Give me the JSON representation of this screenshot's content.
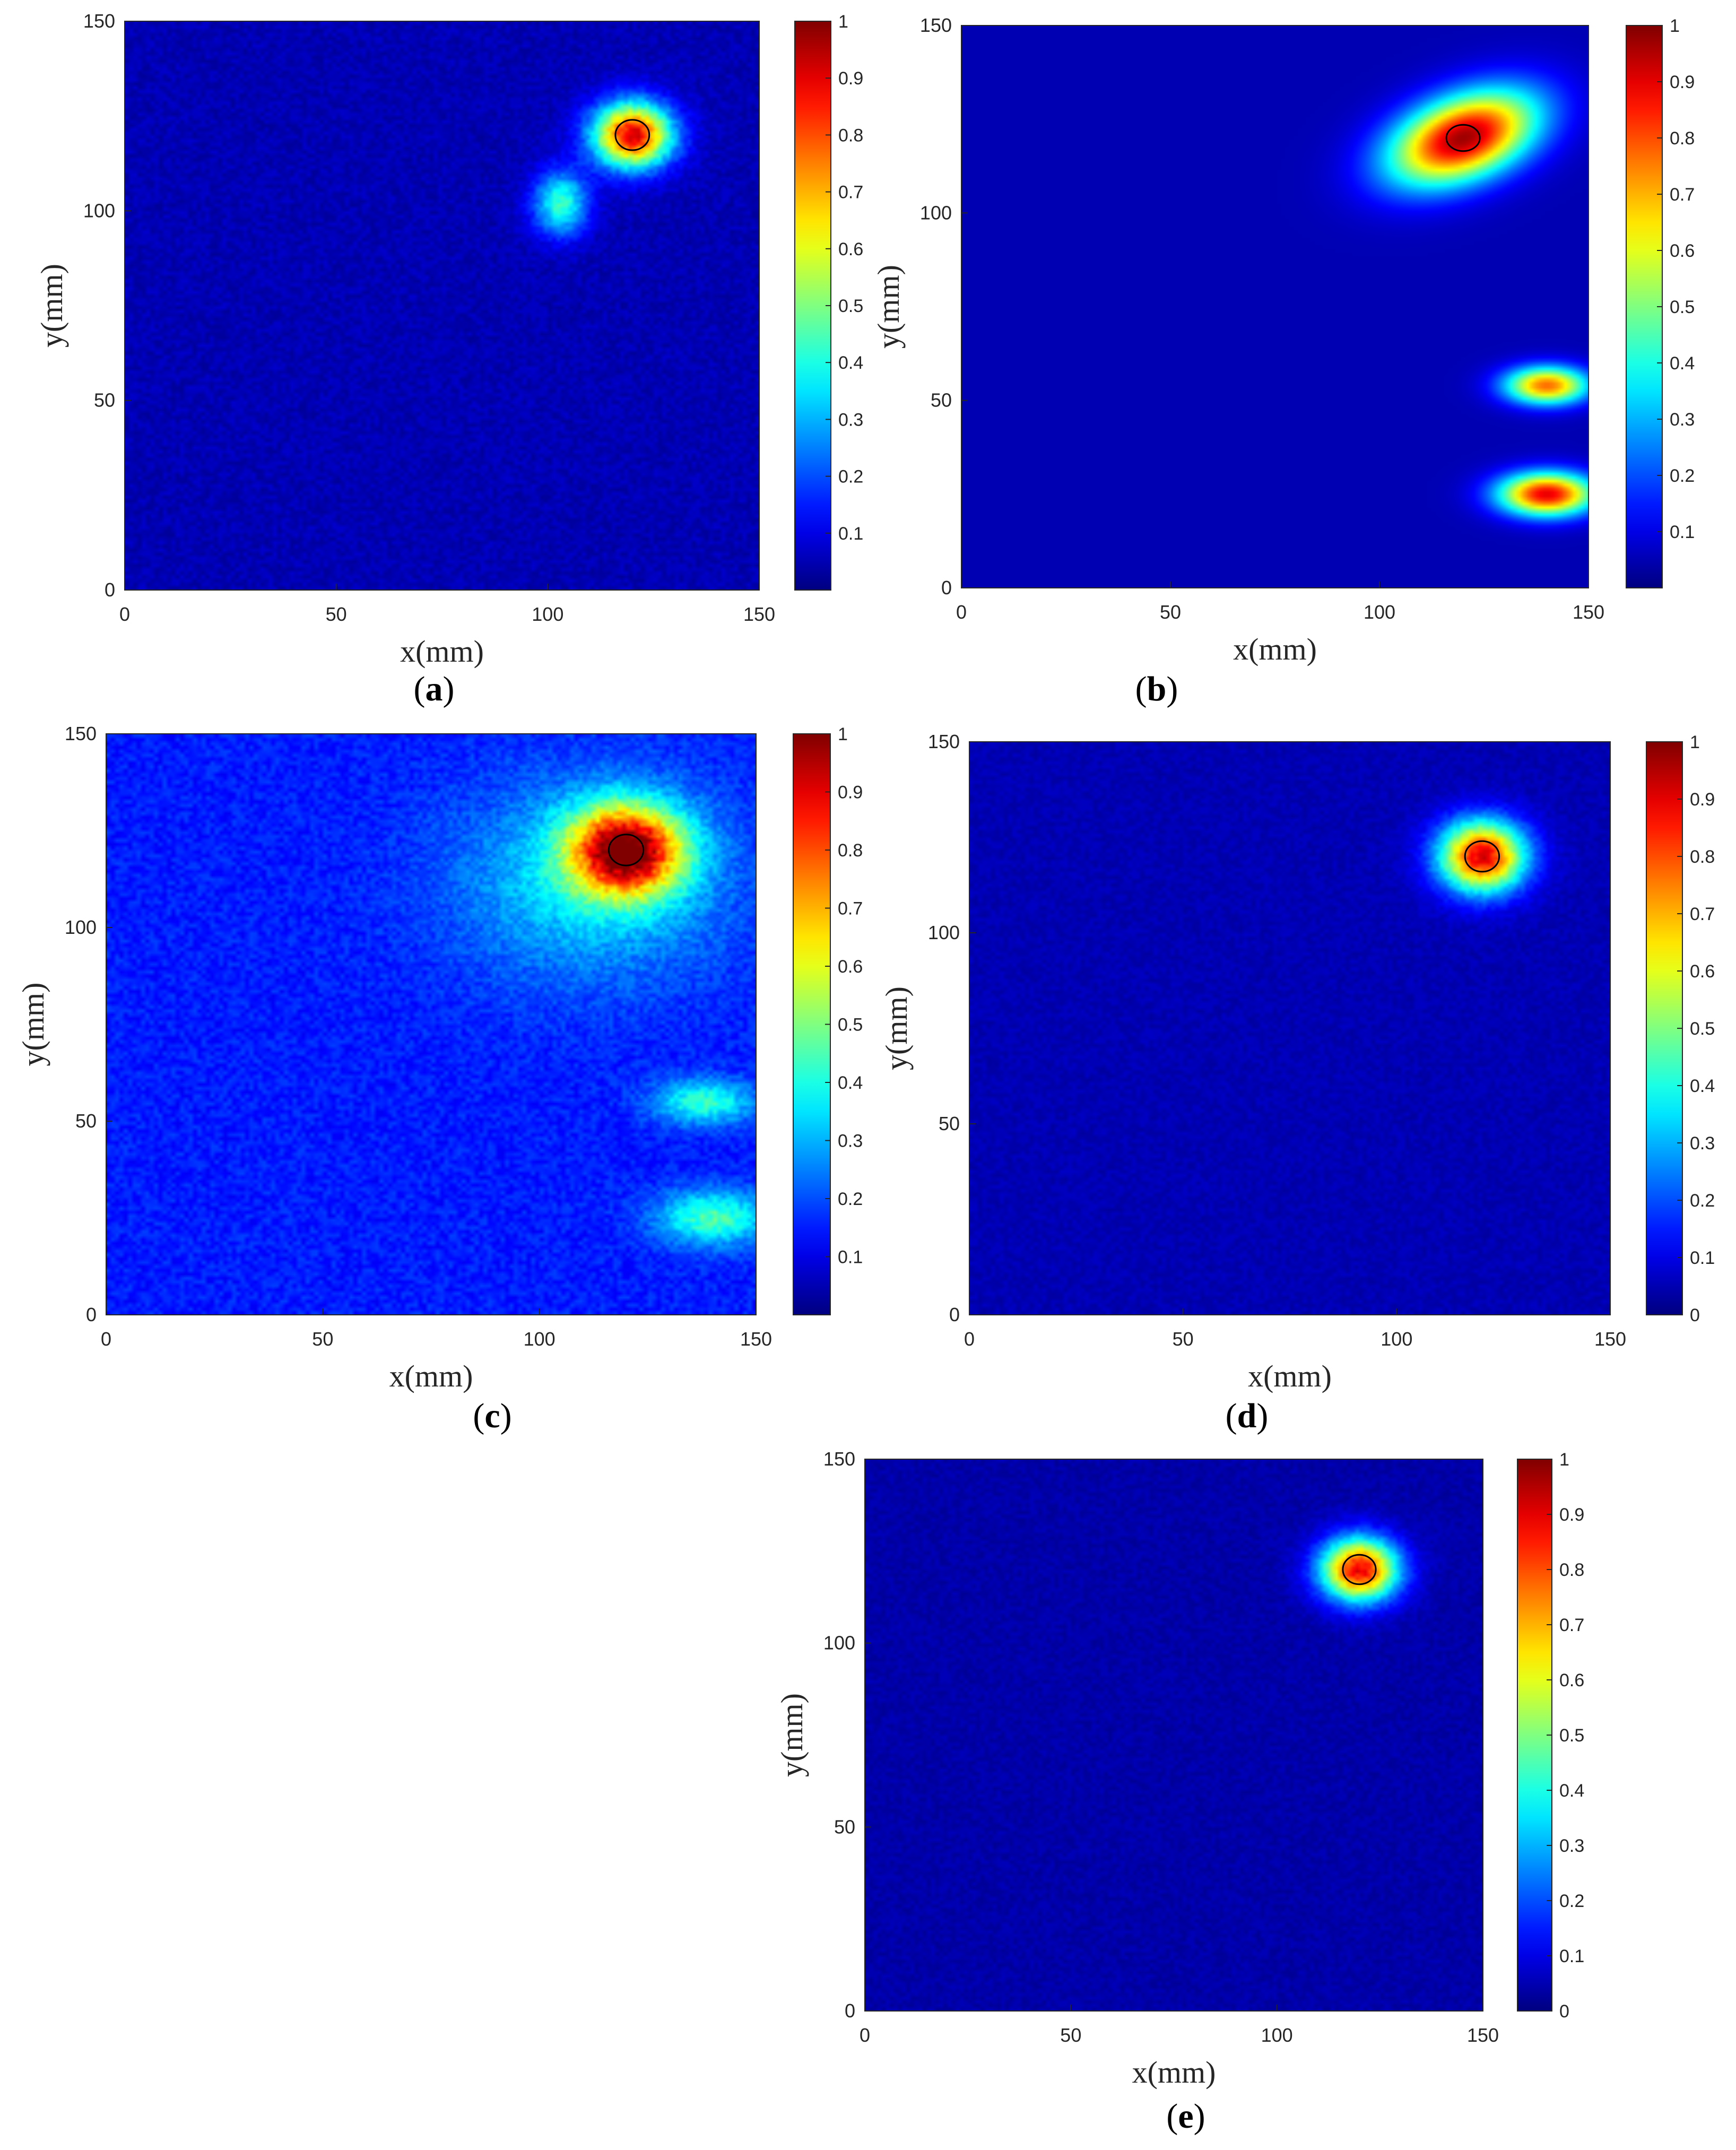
{
  "chart_data": [
    {
      "type": "heatmap",
      "panel_label": "a",
      "xlabel": "x(mm)",
      "ylabel": "y(mm)",
      "xlim": [
        0,
        150
      ],
      "ylim": [
        0,
        150
      ],
      "x_ticks": [
        "0",
        "50",
        "100",
        "150"
      ],
      "y_ticks": [
        "0",
        "50",
        "100",
        "150"
      ],
      "colorbar": {
        "min": 0,
        "max": 1,
        "ticks": [
          "0.1",
          "0.2",
          "0.3",
          "0.4",
          "0.5",
          "0.6",
          "0.7",
          "0.8",
          "0.9",
          "1"
        ]
      },
      "colormap": "jet",
      "background_value": 0.05,
      "noise": 0.04,
      "target_marker": {
        "x": 120,
        "y": 120,
        "rx": 4,
        "ry": 4
      },
      "hotspots": [
        {
          "x": 120,
          "y": 120,
          "sx": 6.5,
          "sy": 6,
          "value": 0.85
        },
        {
          "x": 103,
          "y": 102,
          "sx": 4.5,
          "sy": 6,
          "value": 0.38
        }
      ]
    },
    {
      "type": "heatmap",
      "panel_label": "b",
      "xlabel": "x(mm)",
      "ylabel": "y(mm)",
      "xlim": [
        0,
        150
      ],
      "ylim": [
        0,
        150
      ],
      "x_ticks": [
        "0",
        "50",
        "100",
        "150"
      ],
      "y_ticks": [
        "0",
        "50",
        "100",
        "150"
      ],
      "colorbar": {
        "min": 0,
        "max": 1,
        "ticks": [
          "0.1",
          "0.2",
          "0.3",
          "0.4",
          "0.5",
          "0.6",
          "0.7",
          "0.8",
          "0.9",
          "1"
        ]
      },
      "colormap": "jet",
      "background_value": 0.05,
      "noise": 0.0,
      "target_marker": {
        "x": 120,
        "y": 120,
        "rx": 4,
        "ry": 3.5
      },
      "hotspots": [
        {
          "x": 120,
          "y": 120,
          "sx": 13,
          "sy": 7.5,
          "value": 0.92,
          "rotation": -25
        },
        {
          "x": 140,
          "y": 54,
          "sx": 7,
          "sy": 3.5,
          "value": 0.72
        },
        {
          "x": 140,
          "y": 25,
          "sx": 8,
          "sy": 4,
          "value": 0.85
        }
      ]
    },
    {
      "type": "heatmap",
      "panel_label": "c",
      "xlabel": "x(mm)",
      "ylabel": "y(mm)",
      "xlim": [
        0,
        150
      ],
      "ylim": [
        0,
        150
      ],
      "x_ticks": [
        "0",
        "50",
        "100",
        "150"
      ],
      "y_ticks": [
        "0",
        "50",
        "100",
        "150"
      ],
      "colorbar": {
        "min": 0,
        "max": 1,
        "ticks": [
          "0.1",
          "0.2",
          "0.3",
          "0.4",
          "0.5",
          "0.6",
          "0.7",
          "0.8",
          "0.9",
          "1"
        ]
      },
      "colormap": "jet",
      "background_value": 0.15,
      "noise": 0.05,
      "target_marker": {
        "x": 120,
        "y": 120,
        "rx": 4,
        "ry": 4
      },
      "hotspots": [
        {
          "x": 120,
          "y": 120,
          "sx": 9,
          "sy": 8,
          "value": 0.8
        },
        {
          "x": 112,
          "y": 112,
          "sx": 22,
          "sy": 18,
          "value": 0.2
        },
        {
          "x": 138,
          "y": 55,
          "sx": 8,
          "sy": 4,
          "value": 0.28
        },
        {
          "x": 140,
          "y": 25,
          "sx": 9,
          "sy": 5,
          "value": 0.3
        }
      ]
    },
    {
      "type": "heatmap",
      "panel_label": "d",
      "xlabel": "x(mm)",
      "ylabel": "y(mm)",
      "xlim": [
        0,
        150
      ],
      "ylim": [
        0,
        150
      ],
      "x_ticks": [
        "0",
        "50",
        "100",
        "150"
      ],
      "y_ticks": [
        "0",
        "50",
        "100",
        "150"
      ],
      "colorbar": {
        "min": 0,
        "max": 1,
        "ticks": [
          "0",
          "0.1",
          "0.2",
          "0.3",
          "0.4",
          "0.5",
          "0.6",
          "0.7",
          "0.8",
          "0.9",
          "1"
        ]
      },
      "colormap": "jet",
      "background_value": 0.05,
      "noise": 0.03,
      "target_marker": {
        "x": 120,
        "y": 120,
        "rx": 4,
        "ry": 4
      },
      "hotspots": [
        {
          "x": 120,
          "y": 120,
          "sx": 7,
          "sy": 6.5,
          "value": 0.85
        }
      ]
    },
    {
      "type": "heatmap",
      "panel_label": "e",
      "xlabel": "x(mm)",
      "ylabel": "y(mm)",
      "xlim": [
        0,
        150
      ],
      "ylim": [
        0,
        150
      ],
      "x_ticks": [
        "0",
        "50",
        "100",
        "150"
      ],
      "y_ticks": [
        "0",
        "50",
        "100",
        "150"
      ],
      "colorbar": {
        "min": 0,
        "max": 1,
        "ticks": [
          "0",
          "0.1",
          "0.2",
          "0.3",
          "0.4",
          "0.5",
          "0.6",
          "0.7",
          "0.8",
          "0.9",
          "1"
        ]
      },
      "colormap": "jet",
      "background_value": 0.04,
      "noise": 0.03,
      "target_marker": {
        "x": 120,
        "y": 120,
        "rx": 4,
        "ry": 4
      },
      "hotspots": [
        {
          "x": 120,
          "y": 120,
          "sx": 6.5,
          "sy": 6,
          "value": 0.85
        }
      ]
    }
  ]
}
